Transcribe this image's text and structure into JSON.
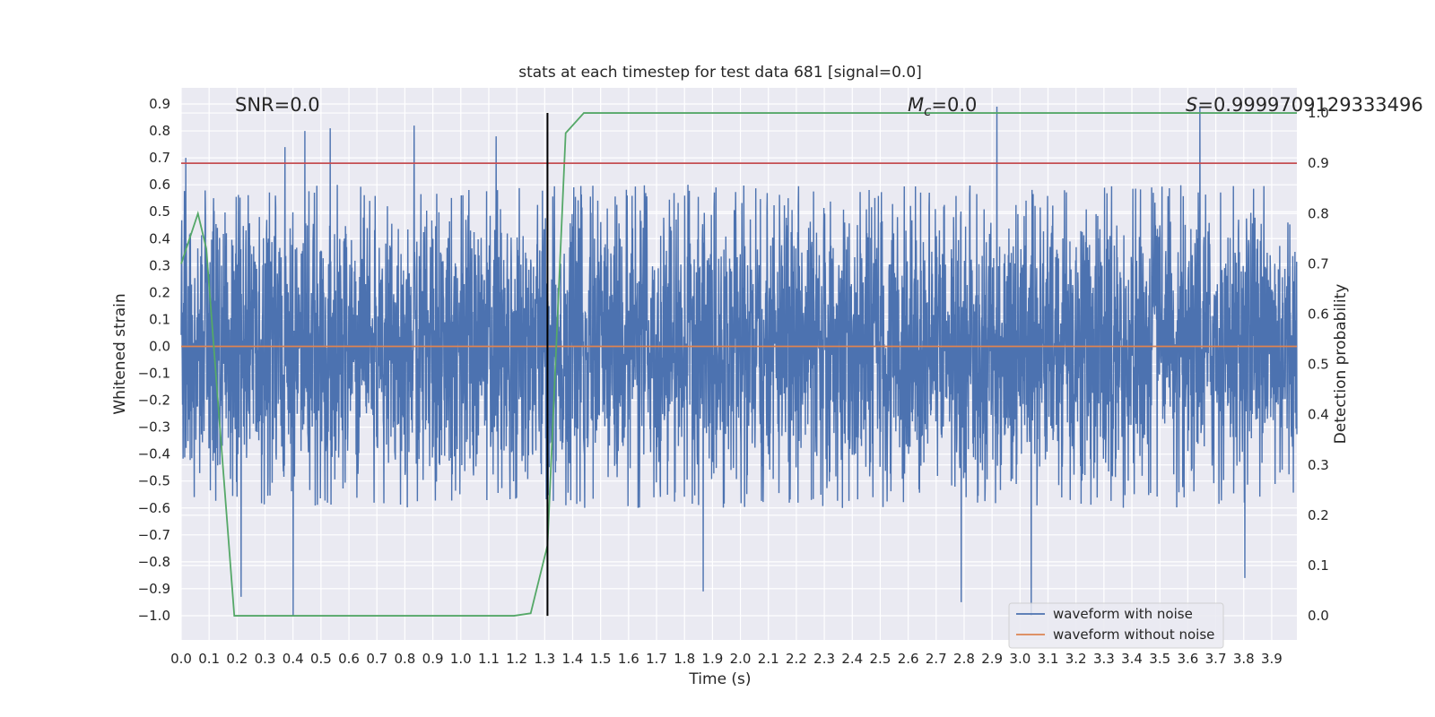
{
  "chart_data": {
    "type": "line",
    "title": "stats at each timestep for test data 681 [signal=0.0]",
    "xlabel": "Time (s)",
    "ylabel": "Whitened strain",
    "y2label": "Detection probability",
    "xlim": [
      0.0,
      3.99
    ],
    "ylim": [
      -1.09,
      0.96
    ],
    "y2lim": [
      -0.048,
      1.05
    ],
    "xticks": [
      "0.0",
      "0.1",
      "0.2",
      "0.3",
      "0.4",
      "0.5",
      "0.6",
      "0.7",
      "0.8",
      "0.9",
      "1.0",
      "1.1",
      "1.2",
      "1.3",
      "1.4",
      "1.5",
      "1.6",
      "1.7",
      "1.8",
      "1.9",
      "2.0",
      "2.1",
      "2.2",
      "2.3",
      "2.4",
      "2.5",
      "2.6",
      "2.7",
      "2.8",
      "2.9",
      "3.0",
      "3.1",
      "3.2",
      "3.3",
      "3.4",
      "3.5",
      "3.6",
      "3.7",
      "3.8",
      "3.9"
    ],
    "yticks": [
      "0.9",
      "0.8",
      "0.7",
      "0.6",
      "0.5",
      "0.4",
      "0.3",
      "0.2",
      "0.1",
      "0.0",
      "−0.1",
      "−0.2",
      "−0.3",
      "−0.4",
      "−0.5",
      "−0.6",
      "−0.7",
      "−0.8",
      "−0.9",
      "−1.0"
    ],
    "y2ticks": [
      "1.0",
      "0.9",
      "0.8",
      "0.7",
      "0.6",
      "0.5",
      "0.4",
      "0.3",
      "0.2",
      "0.1",
      "0.0"
    ],
    "grid": true,
    "legend_position": "lower-right",
    "annotations": {
      "snr": "SNR=0.0",
      "mc_symbol": "M",
      "mc_sub": "c",
      "mc_value": "=0.0",
      "s_symbol": "S",
      "s_value": "=0.9999709129333496"
    },
    "series": [
      {
        "name": "waveform with noise",
        "axis": "left",
        "style": "noise",
        "sample_count": 4096,
        "envelope_typical": [
          -0.6,
          0.6
        ],
        "envelope_extreme": [
          -1.0,
          0.89
        ],
        "peaks": [
          {
            "x": 0.017,
            "y": 0.7
          },
          {
            "x": 0.214,
            "y": -0.93
          },
          {
            "x": 0.371,
            "y": 0.74
          },
          {
            "x": 0.4,
            "y": -1.0
          },
          {
            "x": 0.442,
            "y": 0.8
          },
          {
            "x": 0.533,
            "y": 0.81
          },
          {
            "x": 0.833,
            "y": 0.82
          },
          {
            "x": 1.126,
            "y": 0.78
          },
          {
            "x": 1.867,
            "y": -0.91
          },
          {
            "x": 2.79,
            "y": -0.95
          },
          {
            "x": 2.917,
            "y": 0.89
          },
          {
            "x": 3.04,
            "y": -1.0
          },
          {
            "x": 3.643,
            "y": 0.89
          },
          {
            "x": 3.804,
            "y": -0.86
          }
        ],
        "color": "#4c72b0"
      },
      {
        "name": "waveform without noise",
        "axis": "left",
        "x": [
          0.0,
          3.99
        ],
        "y": [
          0.0,
          0.0
        ],
        "color": "#dd8452"
      },
      {
        "axis": "right",
        "x": [
          0.0,
          0.06,
          0.09,
          0.19,
          0.25,
          0.31,
          0.4,
          0.6,
          0.8,
          1.0,
          1.19,
          1.25,
          1.31,
          1.375,
          1.44,
          3.99
        ],
        "y": [
          0.7,
          0.8,
          0.73,
          0.0,
          0.0,
          0.0,
          0.0,
          0.0,
          0.0,
          0.0,
          0.0,
          0.005,
          0.14,
          0.96,
          1.0,
          1.0
        ],
        "color": "#55a868"
      },
      {
        "axis": "right",
        "x": [
          0.0,
          3.99
        ],
        "y": [
          0.9,
          0.9
        ],
        "color": "#c44e52"
      }
    ],
    "vertical_line": {
      "x": 1.31,
      "y_range": [
        0.0,
        1.0
      ],
      "axis": "right",
      "color": "#000000"
    },
    "legend": [
      "waveform with noise",
      "waveform without noise"
    ]
  }
}
